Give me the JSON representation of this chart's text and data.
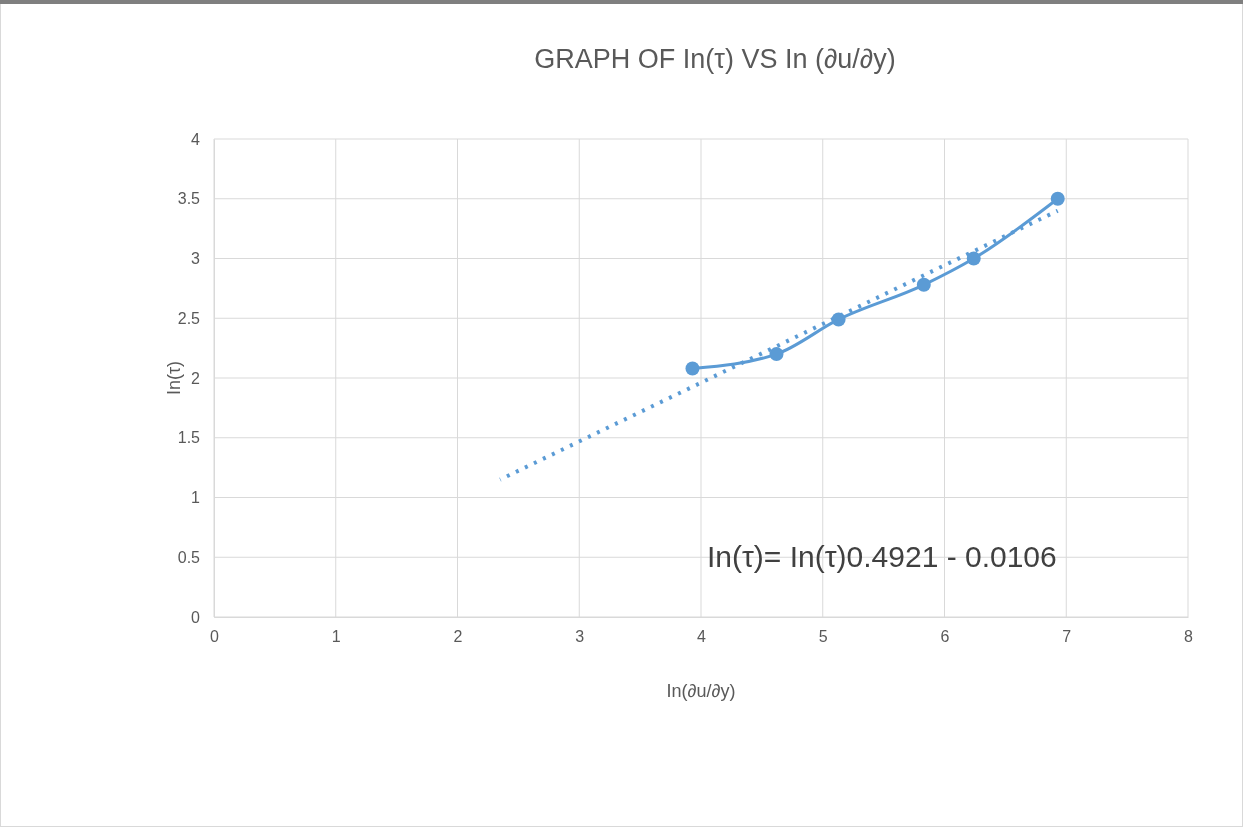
{
  "chart_data": {
    "type": "line",
    "title": "GRAPH OF In(τ) VS In (∂u/∂y)",
    "xlabel": "In(∂u/∂y)",
    "ylabel": "In(τ)",
    "xlim": [
      0,
      8
    ],
    "xticks": [
      0,
      1,
      2,
      3,
      4,
      5,
      6,
      7,
      8
    ],
    "ylim": [
      0,
      4
    ],
    "yticks": [
      0,
      0.5,
      1,
      1.5,
      2,
      2.5,
      3,
      3.5,
      4
    ],
    "grid": true,
    "marker": "circle",
    "x": [
      3.93,
      4.62,
      5.13,
      5.83,
      6.24,
      6.93
    ],
    "series": [
      {
        "color": "#5b9bd5",
        "values": [
          2.08,
          2.2,
          2.49,
          2.78,
          3.0,
          3.5
        ],
        "line_style": "solid"
      },
      {
        "type": "line",
        "color": "#5b9bd5",
        "x": [
          2.35,
          6.93
        ],
        "values": [
          1.15,
          3.4
        ],
        "marker": "none",
        "line_style": "dotted"
      }
    ],
    "annotations": [
      "In(τ)= In(τ)0.4921 - 0.0106"
    ]
  }
}
